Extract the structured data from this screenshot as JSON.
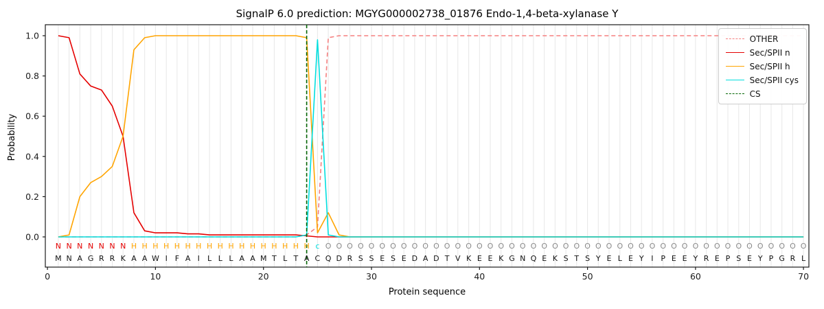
{
  "chart_data": {
    "type": "line",
    "title": "SignalP 6.0 prediction: MGYG000002738_01876 Endo-1,4-beta-xylanase Y",
    "xlabel": "Protein sequence",
    "ylabel": "Probability",
    "xlim": [
      -0.2,
      70.5
    ],
    "ylim": [
      0,
      1.0
    ],
    "x_ticks": [
      0,
      10,
      20,
      30,
      40,
      50,
      60,
      70
    ],
    "y_ticks": [
      0,
      0.2,
      0.4,
      0.6,
      0.8,
      1
    ],
    "grid": "vertical-per-residue",
    "grid_color": "#e7e7e7",
    "axis_color": "#1a1a1a",
    "legend_position": "upper-right",
    "sequence": "MNAGRRKAAWIFAILLLAAMTLTACQDRSSESEDADTVKEEKGNQEKSTSYELEYIPEEYREPSEYPGRL",
    "region_labels": "NNNNNNNHHHHHHHHHHHHHHHHHcOOOOOOOOOOOOOOOOOOOOOOOOOOOOOOOOOOOOOOOOOOOOO",
    "label_colors": {
      "N": "#e50000",
      "H": "#ffa400",
      "c": "#00dede",
      "O": "#8a8a8a"
    },
    "residue_letter_color": "#111111",
    "series": [
      {
        "name": "OTHER",
        "color": "#f57f7f",
        "dash": true,
        "values": [
          0,
          0,
          0,
          0,
          0,
          0,
          0,
          0,
          0,
          0,
          0,
          0,
          0,
          0,
          0,
          0,
          0,
          0,
          0,
          0,
          0,
          0,
          0,
          0.01,
          0.05,
          0.99,
          1,
          1,
          1,
          1,
          1,
          1,
          1,
          1,
          1,
          1,
          1,
          1,
          1,
          1,
          1,
          1,
          1,
          1,
          1,
          1,
          1,
          1,
          1,
          1,
          1,
          1,
          1,
          1,
          1,
          1,
          1,
          1,
          1,
          1,
          1,
          1,
          1,
          1,
          1,
          1,
          1,
          1,
          1,
          1
        ]
      },
      {
        "name": "Sec/SPII n",
        "color": "#e50000",
        "dash": false,
        "values": [
          1,
          0.99,
          0.81,
          0.75,
          0.73,
          0.65,
          0.5,
          0.12,
          0.03,
          0.02,
          0.02,
          0.02,
          0.015,
          0.015,
          0.01,
          0.01,
          0.01,
          0.01,
          0.01,
          0.01,
          0.01,
          0.01,
          0.01,
          0.005,
          0,
          0,
          0,
          0,
          0,
          0,
          0,
          0,
          0,
          0,
          0,
          0,
          0,
          0,
          0,
          0,
          0,
          0,
          0,
          0,
          0,
          0,
          0,
          0,
          0,
          0,
          0,
          0,
          0,
          0,
          0,
          0,
          0,
          0,
          0,
          0,
          0,
          0,
          0,
          0,
          0,
          0,
          0,
          0,
          0,
          0
        ]
      },
      {
        "name": "Sec/SPII h",
        "color": "#ffa400",
        "dash": false,
        "values": [
          0,
          0.01,
          0.2,
          0.27,
          0.3,
          0.35,
          0.5,
          0.93,
          0.99,
          1,
          1,
          1,
          1,
          1,
          1,
          1,
          1,
          1,
          1,
          1,
          1,
          1,
          1,
          0.99,
          0.02,
          0.12,
          0.01,
          0,
          0,
          0,
          0,
          0,
          0,
          0,
          0,
          0,
          0,
          0,
          0,
          0,
          0,
          0,
          0,
          0,
          0,
          0,
          0,
          0,
          0,
          0,
          0,
          0,
          0,
          0,
          0,
          0,
          0,
          0,
          0,
          0,
          0,
          0,
          0,
          0,
          0,
          0,
          0,
          0,
          0,
          0
        ]
      },
      {
        "name": "Sec/SPII cys",
        "color": "#00dede",
        "dash": false,
        "values": [
          0,
          0,
          0,
          0,
          0,
          0,
          0,
          0,
          0,
          0,
          0,
          0,
          0,
          0,
          0,
          0,
          0,
          0,
          0,
          0,
          0,
          0,
          0,
          0.01,
          0.98,
          0.01,
          0,
          0,
          0,
          0,
          0,
          0,
          0,
          0,
          0,
          0,
          0,
          0,
          0,
          0,
          0,
          0,
          0,
          0,
          0,
          0,
          0,
          0,
          0,
          0,
          0,
          0,
          0,
          0,
          0,
          0,
          0,
          0,
          0,
          0,
          0,
          0,
          0,
          0,
          0,
          0,
          0,
          0,
          0,
          0
        ]
      },
      {
        "name": "CS",
        "color": "#006400",
        "dash": true,
        "type": "vline",
        "x": 24
      }
    ]
  }
}
